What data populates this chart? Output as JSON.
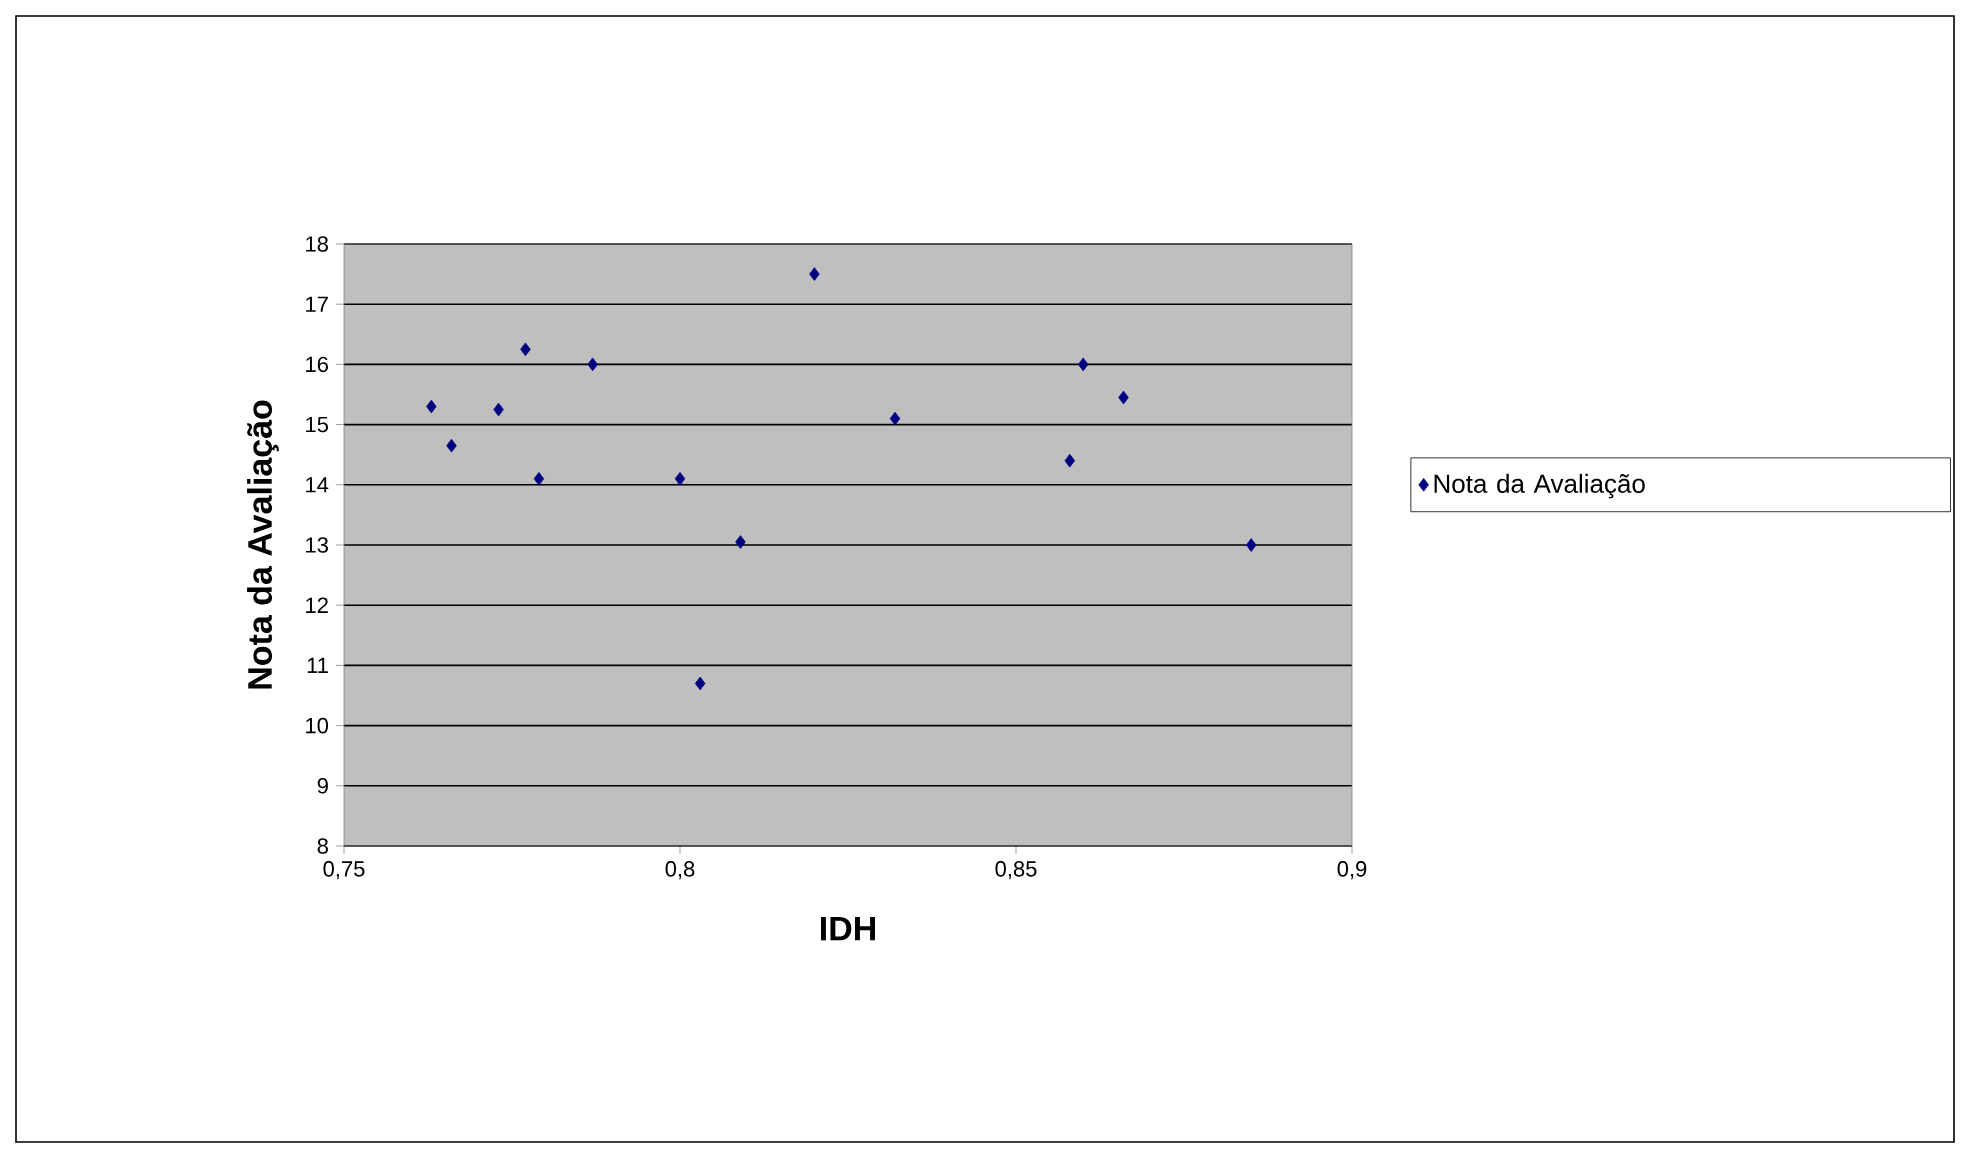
{
  "chart_data": {
    "type": "scatter",
    "xlabel": "IDH",
    "ylabel": "Nota da Avaliação",
    "x": [
      0.763,
      0.766,
      0.773,
      0.777,
      0.779,
      0.787,
      0.8,
      0.803,
      0.809,
      0.82,
      0.832,
      0.858,
      0.86,
      0.866,
      0.885
    ],
    "series": [
      {
        "name": "Nota da Avaliação",
        "color": "#000080",
        "values": [
          15.3,
          14.65,
          15.25,
          16.25,
          14.1,
          16.0,
          14.1,
          10.7,
          13.05,
          17.5,
          15.1,
          14.4,
          16.0,
          15.45,
          13.0
        ]
      }
    ],
    "xlim": [
      0.75,
      0.9
    ],
    "xticks": [
      {
        "value": 0.75,
        "label": "0,75"
      },
      {
        "value": 0.8,
        "label": "0,8"
      },
      {
        "value": 0.85,
        "label": "0,85"
      },
      {
        "value": 0.9,
        "label": "0,9"
      }
    ],
    "ylim": [
      8,
      18
    ],
    "yticks": [
      8,
      9,
      10,
      11,
      12,
      13,
      14,
      15,
      16,
      17,
      18
    ],
    "grid": "y",
    "legend": "right",
    "marker": "diamond"
  }
}
